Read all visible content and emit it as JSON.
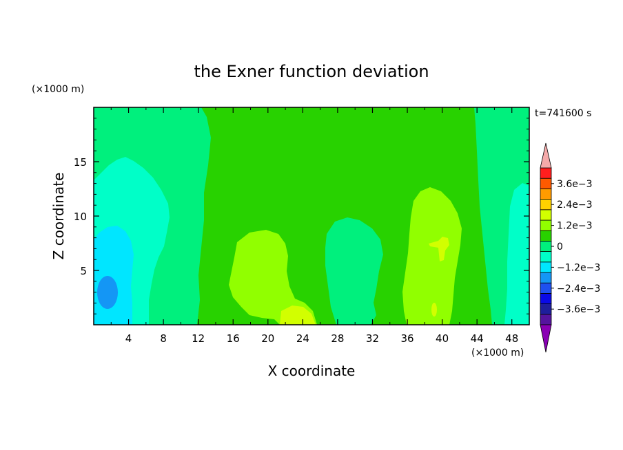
{
  "chart_data": {
    "type": "heatmap",
    "title": "the Exner function deviation",
    "xlabel": "X coordinate",
    "ylabel": "Z coordinate",
    "x_unit": "(×1000 m)",
    "y_unit": "(×1000 m)",
    "time_label": "t=741600 s",
    "xlim": [
      0,
      50
    ],
    "ylim": [
      0,
      20
    ],
    "x_ticks": [
      4,
      8,
      12,
      16,
      20,
      24,
      28,
      32,
      36,
      40,
      44,
      48
    ],
    "y_ticks": [
      5,
      10,
      15
    ],
    "colorbar": {
      "levels": [
        -0.0042,
        -0.0036,
        -0.003,
        -0.0024,
        -0.0018,
        -0.0012,
        -0.0006,
        0,
        0.0006,
        0.0012,
        0.0018,
        0.0024,
        0.003,
        0.0036,
        0.0042
      ],
      "colors": [
        "#8a00b4",
        "#55149e",
        "#1e1e9c",
        "#0a0ae6",
        "#1e50f0",
        "#1496f5",
        "#00e6ff",
        "#00ffc8",
        "#00f07d",
        "#28d200",
        "#91ff00",
        "#d2ff00",
        "#ffd200",
        "#ff9b00",
        "#ff5a00",
        "#ff1e1e",
        "#f5aaaa"
      ],
      "tick_labels": [
        "3.6e−3",
        "2.4e−3",
        "1.2e−3",
        "0",
        "−1.2e−3",
        "−2.4e−3",
        "−3.6e−3"
      ],
      "tick_values": [
        0.0036,
        0.0024,
        0.0012,
        0,
        -0.0012,
        -0.0024,
        -0.0036
      ]
    },
    "regions": [
      {
        "level": 0.0003,
        "color": "#00f07d",
        "description": "background field"
      },
      {
        "level": 0.0009,
        "color": "#28d200",
        "description": "central band x 13-43 km"
      },
      {
        "level": -0.0003,
        "color": "#00ffc8",
        "description": "left column"
      },
      {
        "level": -0.0009,
        "color": "#00e6ff",
        "description": "lower-left"
      },
      {
        "level": -0.0015,
        "color": "#1496f5",
        "description": "small cell near x 2 km z 3 km"
      },
      {
        "level": 0.0015,
        "color": "#91ff00",
        "description": "cells near x 20 km and x 39 km"
      },
      {
        "level": 0.0021,
        "color": "#d2ff00",
        "description": "small spots near x 39-40 km"
      }
    ]
  }
}
